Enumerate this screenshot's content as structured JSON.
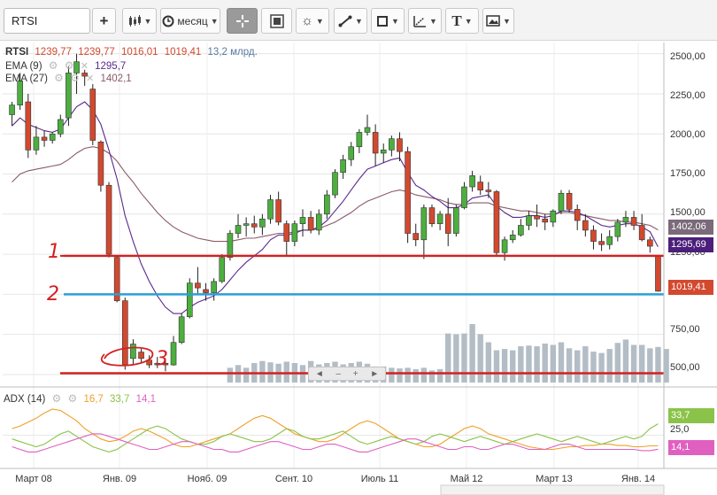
{
  "toolbar": {
    "symbol_value": "RTSI",
    "add_label": "+",
    "chart_type_icon": "candlestick-icon",
    "interval_label": "месяц",
    "interval_icon": "clock-icon",
    "crosshair_icon": "crosshair-icon",
    "zoom_icon": "zoom-icon",
    "indicators_icon": "indicators-icon",
    "line_tool_icon": "trend-line-icon",
    "shape_tool_icon": "rectangle-icon",
    "fib_tool_icon": "fibonacci-icon",
    "text_tool_label": "T",
    "image_tool_icon": "image-icon"
  },
  "legend": {
    "symbol": "RTSI",
    "open": "1239,77",
    "high": "1239,77",
    "low": "1016,01",
    "close": "1019,41",
    "volume": "13,2 млрд.",
    "ema9_label": "EMA (9)",
    "ema9_value": "1295,7",
    "ema27_label": "EMA (27)",
    "ema27_value": "1402,1",
    "adx_label": "ADX (14)",
    "adx_v1": "16,7",
    "adx_v2": "33,7",
    "adx_v3": "14,1"
  },
  "price_tags": {
    "ema27": "1402,06",
    "ema9": "1295,69",
    "last": "1019,41"
  },
  "adx_tags": {
    "high": "33,7",
    "mid": "25,0",
    "low": "14,1"
  },
  "annotations": {
    "level1": "1",
    "level2": "2",
    "level3": "3"
  },
  "scroller": {
    "left": "◄",
    "minus": "–",
    "plus": "+",
    "right": "►"
  },
  "colors": {
    "up": "#4caf3e",
    "down": "#d2492f",
    "ema9": "#5a2a8c",
    "ema27": "#8a5a6a",
    "volume": "#b3bdc5",
    "level_red": "#d42020",
    "level_blue": "#2a9fd6",
    "adx_orange": "#f0a028",
    "adx_green": "#8bc34a",
    "adx_pink": "#e060c0",
    "tag_ema27": "#7a6a7a",
    "tag_ema9": "#4b1f7a",
    "tag_last": "#d2492f"
  },
  "chart_data": {
    "type": "candlestick",
    "interval": "month",
    "x_tick_labels": [
      "Март 08",
      "Янв. 09",
      "Нояб. 09",
      "Сент. 10",
      "Июль 11",
      "Май 12",
      "Март 13",
      "Янв. 14"
    ],
    "y_tick_labels": [
      "500,00",
      "750,00",
      "1000,00",
      "1250,00",
      "1500,00",
      "1750,00",
      "2000,00",
      "2250,00",
      "2500,00"
    ],
    "ylim": [
      450,
      2570
    ],
    "candles": [
      {
        "o": 2120,
        "h": 2200,
        "l": 2050,
        "c": 2180
      },
      {
        "o": 2180,
        "h": 2380,
        "l": 2150,
        "c": 2330
      },
      {
        "o": 2200,
        "h": 2250,
        "l": 1850,
        "c": 1900
      },
      {
        "o": 1900,
        "h": 2050,
        "l": 1870,
        "c": 1980
      },
      {
        "o": 1980,
        "h": 2020,
        "l": 1920,
        "c": 1960
      },
      {
        "o": 1960,
        "h": 2010,
        "l": 1940,
        "c": 2000
      },
      {
        "o": 2000,
        "h": 2120,
        "l": 1980,
        "c": 2090
      },
      {
        "o": 2100,
        "h": 2420,
        "l": 2050,
        "c": 2380
      },
      {
        "o": 2380,
        "h": 2500,
        "l": 2250,
        "c": 2450
      },
      {
        "o": 2380,
        "h": 2400,
        "l": 2300,
        "c": 2360
      },
      {
        "o": 2280,
        "h": 2310,
        "l": 1930,
        "c": 1960
      },
      {
        "o": 1950,
        "h": 1960,
        "l": 1640,
        "c": 1680
      },
      {
        "o": 1680,
        "h": 1700,
        "l": 1230,
        "c": 1250
      },
      {
        "o": 1230,
        "h": 1240,
        "l": 950,
        "c": 960
      },
      {
        "o": 960,
        "h": 980,
        "l": 530,
        "c": 560
      },
      {
        "o": 600,
        "h": 720,
        "l": 560,
        "c": 690
      },
      {
        "o": 640,
        "h": 660,
        "l": 570,
        "c": 600
      },
      {
        "o": 590,
        "h": 620,
        "l": 540,
        "c": 560
      },
      {
        "o": 560,
        "h": 610,
        "l": 540,
        "c": 570
      },
      {
        "o": 570,
        "h": 600,
        "l": 520,
        "c": 560
      },
      {
        "o": 560,
        "h": 740,
        "l": 555,
        "c": 700
      },
      {
        "o": 700,
        "h": 880,
        "l": 690,
        "c": 860
      },
      {
        "o": 860,
        "h": 1100,
        "l": 850,
        "c": 1070
      },
      {
        "o": 1070,
        "h": 1170,
        "l": 1000,
        "c": 1040
      },
      {
        "o": 1030,
        "h": 1070,
        "l": 960,
        "c": 1010
      },
      {
        "o": 1010,
        "h": 1100,
        "l": 960,
        "c": 1080
      },
      {
        "o": 1080,
        "h": 1250,
        "l": 1070,
        "c": 1230
      },
      {
        "o": 1230,
        "h": 1400,
        "l": 1210,
        "c": 1380
      },
      {
        "o": 1380,
        "h": 1500,
        "l": 1350,
        "c": 1430
      },
      {
        "o": 1430,
        "h": 1480,
        "l": 1360,
        "c": 1440
      },
      {
        "o": 1440,
        "h": 1490,
        "l": 1380,
        "c": 1420
      },
      {
        "o": 1420,
        "h": 1500,
        "l": 1370,
        "c": 1470
      },
      {
        "o": 1470,
        "h": 1620,
        "l": 1440,
        "c": 1590
      },
      {
        "o": 1590,
        "h": 1640,
        "l": 1430,
        "c": 1450
      },
      {
        "o": 1440,
        "h": 1460,
        "l": 1240,
        "c": 1330
      },
      {
        "o": 1330,
        "h": 1460,
        "l": 1300,
        "c": 1440
      },
      {
        "o": 1440,
        "h": 1530,
        "l": 1360,
        "c": 1480
      },
      {
        "o": 1480,
        "h": 1520,
        "l": 1380,
        "c": 1400
      },
      {
        "o": 1400,
        "h": 1530,
        "l": 1370,
        "c": 1500
      },
      {
        "o": 1500,
        "h": 1650,
        "l": 1470,
        "c": 1620
      },
      {
        "o": 1620,
        "h": 1780,
        "l": 1600,
        "c": 1760
      },
      {
        "o": 1760,
        "h": 1870,
        "l": 1720,
        "c": 1840
      },
      {
        "o": 1840,
        "h": 1950,
        "l": 1800,
        "c": 1920
      },
      {
        "o": 1920,
        "h": 2030,
        "l": 1880,
        "c": 2010
      },
      {
        "o": 2010,
        "h": 2120,
        "l": 1990,
        "c": 2040
      },
      {
        "o": 2010,
        "h": 2060,
        "l": 1800,
        "c": 1880
      },
      {
        "o": 1880,
        "h": 1940,
        "l": 1820,
        "c": 1900
      },
      {
        "o": 1900,
        "h": 1990,
        "l": 1860,
        "c": 1970
      },
      {
        "o": 1970,
        "h": 2010,
        "l": 1830,
        "c": 1890
      },
      {
        "o": 1890,
        "h": 1920,
        "l": 1320,
        "c": 1380
      },
      {
        "o": 1380,
        "h": 1440,
        "l": 1300,
        "c": 1340
      },
      {
        "o": 1340,
        "h": 1560,
        "l": 1220,
        "c": 1540
      },
      {
        "o": 1540,
        "h": 1560,
        "l": 1420,
        "c": 1440
      },
      {
        "o": 1440,
        "h": 1520,
        "l": 1400,
        "c": 1500
      },
      {
        "o": 1500,
        "h": 1600,
        "l": 1300,
        "c": 1380
      },
      {
        "o": 1380,
        "h": 1560,
        "l": 1360,
        "c": 1540
      },
      {
        "o": 1540,
        "h": 1700,
        "l": 1530,
        "c": 1670
      },
      {
        "o": 1670,
        "h": 1770,
        "l": 1640,
        "c": 1740
      },
      {
        "o": 1700,
        "h": 1740,
        "l": 1620,
        "c": 1650
      },
      {
        "o": 1650,
        "h": 1700,
        "l": 1600,
        "c": 1640
      },
      {
        "o": 1640,
        "h": 1650,
        "l": 1240,
        "c": 1260
      },
      {
        "o": 1260,
        "h": 1360,
        "l": 1210,
        "c": 1340
      },
      {
        "o": 1340,
        "h": 1400,
        "l": 1320,
        "c": 1370
      },
      {
        "o": 1370,
        "h": 1470,
        "l": 1360,
        "c": 1430
      },
      {
        "o": 1430,
        "h": 1520,
        "l": 1400,
        "c": 1490
      },
      {
        "o": 1490,
        "h": 1560,
        "l": 1420,
        "c": 1470
      },
      {
        "o": 1470,
        "h": 1500,
        "l": 1400,
        "c": 1450
      },
      {
        "o": 1450,
        "h": 1530,
        "l": 1420,
        "c": 1520
      },
      {
        "o": 1520,
        "h": 1650,
        "l": 1500,
        "c": 1630
      },
      {
        "o": 1630,
        "h": 1650,
        "l": 1510,
        "c": 1530
      },
      {
        "o": 1530,
        "h": 1560,
        "l": 1400,
        "c": 1460
      },
      {
        "o": 1460,
        "h": 1500,
        "l": 1360,
        "c": 1400
      },
      {
        "o": 1400,
        "h": 1430,
        "l": 1280,
        "c": 1330
      },
      {
        "o": 1330,
        "h": 1380,
        "l": 1270,
        "c": 1310
      },
      {
        "o": 1310,
        "h": 1400,
        "l": 1280,
        "c": 1360
      },
      {
        "o": 1360,
        "h": 1470,
        "l": 1330,
        "c": 1450
      },
      {
        "o": 1450,
        "h": 1520,
        "l": 1420,
        "c": 1480
      },
      {
        "o": 1480,
        "h": 1520,
        "l": 1400,
        "c": 1430
      },
      {
        "o": 1430,
        "h": 1500,
        "l": 1330,
        "c": 1340
      },
      {
        "o": 1340,
        "h": 1360,
        "l": 1260,
        "c": 1300
      },
      {
        "o": 1239.77,
        "h": 1239.77,
        "l": 1016.01,
        "c": 1019.41
      }
    ],
    "ema9": [
      2050,
      2100,
      2060,
      2040,
      2020,
      2010,
      2030,
      2100,
      2170,
      2200,
      2150,
      2060,
      1900,
      1720,
      1490,
      1330,
      1190,
      1080,
      990,
      920,
      880,
      880,
      920,
      950,
      970,
      990,
      1030,
      1090,
      1150,
      1200,
      1240,
      1280,
      1340,
      1370,
      1370,
      1380,
      1400,
      1400,
      1420,
      1460,
      1520,
      1580,
      1650,
      1720,
      1780,
      1800,
      1820,
      1840,
      1850,
      1760,
      1680,
      1650,
      1610,
      1580,
      1540,
      1540,
      1560,
      1600,
      1610,
      1620,
      1550,
      1510,
      1480,
      1480,
      1490,
      1490,
      1480,
      1490,
      1520,
      1520,
      1510,
      1490,
      1460,
      1430,
      1420,
      1430,
      1440,
      1440,
      1420,
      1390,
      1295.69
    ],
    "ema27": [
      1700,
      1750,
      1770,
      1780,
      1790,
      1800,
      1810,
      1840,
      1880,
      1910,
      1920,
      1910,
      1880,
      1830,
      1760,
      1700,
      1630,
      1570,
      1510,
      1460,
      1420,
      1390,
      1370,
      1350,
      1340,
      1330,
      1330,
      1330,
      1340,
      1350,
      1350,
      1360,
      1370,
      1380,
      1380,
      1390,
      1400,
      1400,
      1410,
      1430,
      1450,
      1480,
      1510,
      1550,
      1580,
      1600,
      1620,
      1640,
      1650,
      1640,
      1620,
      1610,
      1600,
      1590,
      1570,
      1560,
      1560,
      1570,
      1570,
      1570,
      1550,
      1540,
      1530,
      1520,
      1520,
      1510,
      1500,
      1500,
      1510,
      1510,
      1500,
      1490,
      1480,
      1470,
      1460,
      1460,
      1450,
      1450,
      1440,
      1430,
      1402.06
    ],
    "volume_ylim": [
      0,
      10
    ],
    "volume": [
      0.1,
      0.1,
      0.1,
      0.1,
      0.1,
      0.1,
      0.1,
      0.1,
      0.1,
      0.1,
      0.1,
      0.1,
      0.1,
      0.1,
      0.1,
      0.1,
      0.1,
      0.1,
      0.1,
      0.1,
      0.1,
      0.1,
      0.1,
      0.1,
      0.1,
      0.1,
      0.1,
      0.1,
      0.1,
      0.1,
      0.1,
      0.1,
      0.1,
      0.1,
      0.1,
      0.1,
      0.1,
      0.1,
      0.1,
      0.1,
      0.1,
      0.1,
      0.1,
      0.1,
      0.1,
      0.1,
      0.1,
      0.1,
      0.1,
      0.1,
      0.1,
      0.1,
      0.1,
      0.1,
      0.1,
      0.1,
      0.1,
      0.1,
      0.1,
      0.1,
      0.1,
      0.1,
      0.1,
      0.1,
      0.1,
      0.1,
      0.1,
      0.1,
      0.1,
      0.1,
      0.1,
      0.1,
      0.1,
      0.1,
      0.1,
      0.1,
      0.1,
      0.1,
      0.1,
      0.1,
      0.1
    ],
    "volume_bars": [
      0,
      0,
      0,
      0,
      0,
      0,
      0,
      0,
      0,
      0,
      0,
      0,
      0,
      0,
      0,
      0,
      0,
      0,
      0,
      0,
      0,
      0,
      0,
      0,
      0,
      0,
      0,
      2.2,
      2.6,
      2.2,
      2.9,
      3.2,
      3.0,
      2.8,
      3.1,
      2.9,
      2.6,
      3.2,
      2.7,
      2.9,
      3.1,
      2.7,
      2.9,
      3.1,
      2.8,
      2.4,
      2.4,
      2.2,
      2.1,
      2.2,
      2.0,
      2.2,
      1.8,
      2.0,
      7.3,
      7.2,
      7.3,
      8.7,
      7.2,
      6.0,
      4.8,
      5.0,
      4.8,
      5.4,
      5.5,
      5.4,
      5.8,
      5.6,
      6.0,
      5.1,
      4.8,
      5.4,
      4.6,
      4.4,
      5.0,
      5.9,
      6.4,
      5.6,
      5.6,
      5.1,
      5.3,
      5.0
    ],
    "levels": [
      {
        "label": "1",
        "value": 1239.77,
        "color": "red"
      },
      {
        "label": "2",
        "value": 1000,
        "color": "blue"
      },
      {
        "label": "3",
        "value": 508,
        "color": "red"
      }
    ],
    "adx_ylim": [
      0,
      60
    ],
    "adx_tick_label": "25,0",
    "adx_series": [
      {
        "name": "ADX",
        "values": [
          30,
          32,
          35,
          38,
          42,
          45,
          44,
          40,
          36,
          30,
          26,
          22,
          20,
          21,
          24,
          28,
          30,
          28,
          25,
          22,
          18,
          16,
          16,
          18,
          20,
          22,
          24,
          26,
          30,
          34,
          38,
          40,
          38,
          34,
          30,
          26,
          24,
          22,
          20,
          20,
          22,
          26,
          30,
          34,
          36,
          34,
          30,
          26,
          22,
          20,
          18,
          16,
          16,
          18,
          22,
          26,
          30,
          32,
          30,
          26,
          24,
          22,
          20,
          18,
          16,
          15,
          14,
          14,
          15,
          16,
          16,
          17,
          17,
          18,
          18,
          17,
          17,
          16,
          16,
          16.7,
          16.7
        ]
      },
      {
        "name": "+DI",
        "values": [
          22,
          20,
          18,
          16,
          18,
          22,
          26,
          28,
          24,
          20,
          16,
          14,
          12,
          14,
          18,
          22,
          26,
          30,
          32,
          30,
          26,
          22,
          20,
          18,
          18,
          20,
          24,
          26,
          24,
          22,
          20,
          20,
          22,
          26,
          30,
          28,
          24,
          22,
          22,
          24,
          26,
          28,
          24,
          20,
          18,
          20,
          22,
          24,
          22,
          20,
          18,
          20,
          24,
          26,
          24,
          22,
          20,
          22,
          24,
          22,
          20,
          18,
          20,
          22,
          24,
          26,
          24,
          22,
          20,
          22,
          24,
          22,
          20,
          18,
          20,
          22,
          24,
          22,
          24,
          30,
          33.7
        ]
      },
      {
        "name": "-DI",
        "values": [
          16,
          14,
          12,
          12,
          14,
          16,
          18,
          20,
          22,
          24,
          26,
          26,
          24,
          22,
          20,
          18,
          16,
          14,
          14,
          16,
          18,
          20,
          20,
          18,
          16,
          14,
          14,
          12,
          12,
          14,
          16,
          18,
          20,
          20,
          18,
          16,
          14,
          14,
          16,
          18,
          18,
          16,
          14,
          12,
          12,
          14,
          16,
          18,
          20,
          22,
          22,
          20,
          18,
          16,
          14,
          14,
          16,
          16,
          14,
          14,
          16,
          18,
          18,
          16,
          14,
          14,
          14,
          16,
          18,
          18,
          16,
          14,
          14,
          14,
          14,
          14,
          14,
          14,
          13,
          13,
          14.1
        ]
      }
    ]
  }
}
